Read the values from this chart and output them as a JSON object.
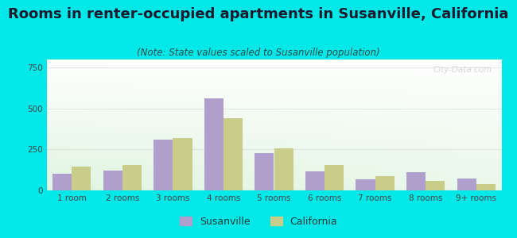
{
  "title": "Rooms in renter-occupied apartments in Susanville, California",
  "subtitle": "(Note: State values scaled to Susanville population)",
  "categories": [
    "1 room",
    "2 rooms",
    "3 rooms",
    "4 rooms",
    "5 rooms",
    "6 rooms",
    "7 rooms",
    "8 rooms",
    "9+ rooms"
  ],
  "susanville": [
    100,
    120,
    310,
    560,
    230,
    115,
    70,
    110,
    75
  ],
  "california": [
    145,
    155,
    320,
    440,
    255,
    155,
    85,
    60,
    40
  ],
  "susanville_color": "#b09fcc",
  "california_color": "#c8cd8a",
  "ylim": [
    0,
    800
  ],
  "yticks": [
    0,
    250,
    500,
    750
  ],
  "bg_outer": "#00e8e8",
  "title_fontsize": 13,
  "subtitle_fontsize": 8.5,
  "bar_width": 0.38,
  "legend_susanville": "Susanville",
  "legend_california": "California"
}
